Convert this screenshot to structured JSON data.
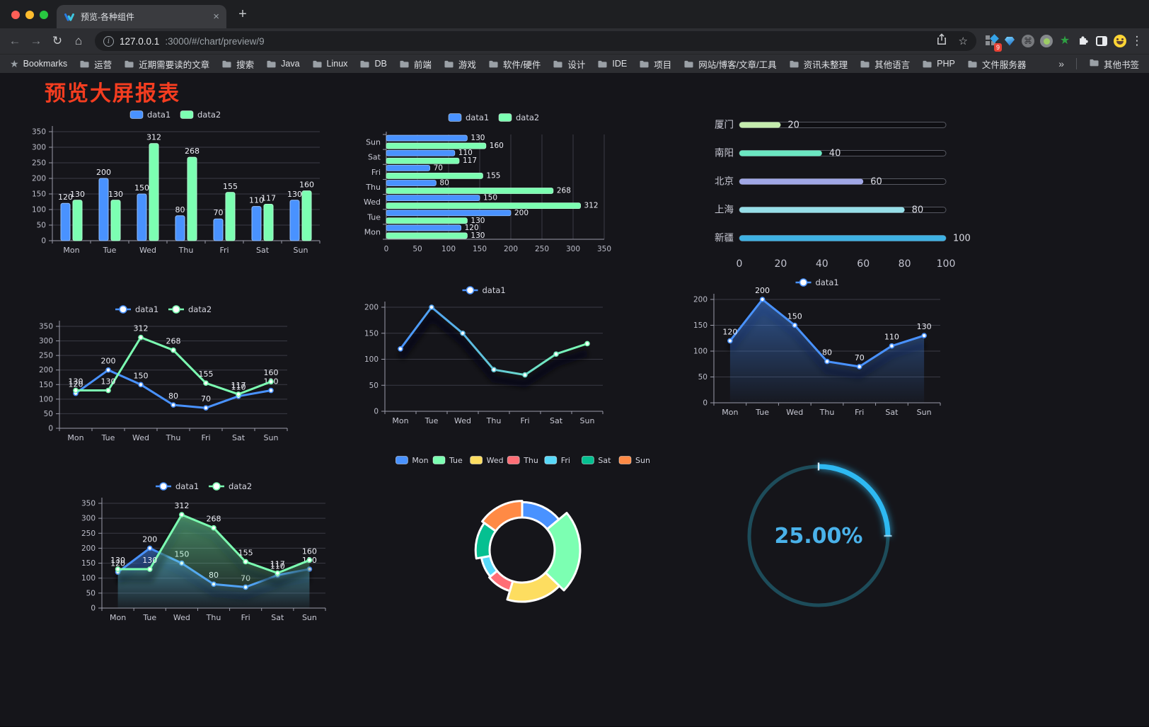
{
  "browser": {
    "tab_title": "预览-各种组件",
    "url_host": "127.0.0.1",
    "url_rest": ":3000/#/chart/preview/9",
    "bookmarks_label": "Bookmarks",
    "bookmarks": [
      "运营",
      "近期需要读的文章",
      "搜索",
      "Java",
      "Linux",
      "DB",
      "前端",
      "游戏",
      "软件/硬件",
      "设计",
      "IDE",
      "项目",
      "网站/博客/文章/工具",
      "资讯未整理",
      "其他语言",
      "PHP",
      "文件服务器"
    ],
    "overflow": "»",
    "other_bookmarks": "其他书签",
    "extension_badge": "9",
    "icons": {
      "back": "←",
      "forward": "→",
      "reload": "↻",
      "home": "⌂",
      "star": "☆",
      "dots": "⋮",
      "close": "×",
      "plus": "+",
      "bookmarks_star": "★",
      "cmd": "⌘",
      "green_star": "★"
    }
  },
  "page": {
    "title": "预览大屏报表",
    "title_color": "#f53d20"
  },
  "chart_data": [
    {
      "type": "bar",
      "legend": [
        "data1",
        "data2"
      ],
      "legend_position": "top",
      "categories": [
        "Mon",
        "Tue",
        "Wed",
        "Thu",
        "Fri",
        "Sat",
        "Sun"
      ],
      "series": [
        {
          "name": "data1",
          "color": "#4992ff",
          "values": [
            120,
            200,
            150,
            80,
            70,
            110,
            130
          ]
        },
        {
          "name": "data2",
          "color": "#7cffb2",
          "values": [
            130,
            130,
            312,
            268,
            155,
            117,
            160
          ]
        }
      ],
      "ylim": [
        0,
        350
      ],
      "yticks": [
        0,
        50,
        100,
        150,
        200,
        250,
        300,
        350
      ],
      "grid": true,
      "value_labels": true
    },
    {
      "type": "hbar",
      "legend": [
        "data1",
        "data2"
      ],
      "legend_position": "top",
      "categories": [
        "Mon",
        "Tue",
        "Wed",
        "Thu",
        "Fri",
        "Sat",
        "Sun"
      ],
      "display_order_top_to_bottom": [
        "Sun",
        "Sat",
        "Fri",
        "Thu",
        "Wed",
        "Tue",
        "Mon"
      ],
      "series": [
        {
          "name": "data1",
          "color": "#4992ff",
          "values": [
            120,
            200,
            150,
            80,
            70,
            110,
            130
          ]
        },
        {
          "name": "data2",
          "color": "#7cffb2",
          "values": [
            130,
            130,
            312,
            268,
            155,
            117,
            160
          ]
        }
      ],
      "xlim": [
        0,
        350
      ],
      "xticks": [
        0,
        50,
        100,
        150,
        200,
        250,
        300,
        350
      ],
      "grid": true,
      "value_labels": true
    },
    {
      "type": "progress",
      "max": 100,
      "xticks": [
        0,
        20,
        40,
        60,
        80,
        100
      ],
      "items": [
        {
          "label": "厦门",
          "value": 20,
          "color": "#c4ebad"
        },
        {
          "label": "南阳",
          "value": 40,
          "color": "#6be6c1"
        },
        {
          "label": "北京",
          "value": 60,
          "color": "#a0a7e6"
        },
        {
          "label": "上海",
          "value": 80,
          "color": "#96dee8"
        },
        {
          "label": "新疆",
          "value": 100,
          "color": "#3fb1e3"
        }
      ]
    },
    {
      "type": "line",
      "legend": [
        "data1",
        "data2"
      ],
      "legend_position": "top",
      "categories": [
        "Mon",
        "Tue",
        "Wed",
        "Thu",
        "Fri",
        "Sat",
        "Sun"
      ],
      "series": [
        {
          "name": "data1",
          "color": "#4992ff",
          "values": [
            120,
            200,
            150,
            80,
            70,
            110,
            130
          ]
        },
        {
          "name": "data2",
          "color": "#7cffb2",
          "values": [
            130,
            130,
            312,
            268,
            155,
            117,
            160
          ]
        }
      ],
      "ylim": [
        0,
        350
      ],
      "yticks": [
        0,
        50,
        100,
        150,
        200,
        250,
        300,
        350
      ],
      "grid": true,
      "value_labels": true
    },
    {
      "type": "line",
      "legend": [
        "data1"
      ],
      "legend_position": "top",
      "shadow": true,
      "categories": [
        "Mon",
        "Tue",
        "Wed",
        "Thu",
        "Fri",
        "Sat",
        "Sun"
      ],
      "series": [
        {
          "name": "data1",
          "color": "#4992ff",
          "color_gradient": [
            "#4992ff",
            "#7cffb2"
          ],
          "values": [
            120,
            200,
            150,
            80,
            70,
            110,
            130
          ]
        }
      ],
      "ylim": [
        0,
        200
      ],
      "yticks": [
        0,
        50,
        100,
        150,
        200
      ],
      "grid": true,
      "value_labels": false
    },
    {
      "type": "line",
      "legend": [
        "data1"
      ],
      "legend_position": "top",
      "shadow": true,
      "categories": [
        "Mon",
        "Tue",
        "Wed",
        "Thu",
        "Fri",
        "Sat",
        "Sun"
      ],
      "series": [
        {
          "name": "data1",
          "color": "#4992ff",
          "area": true,
          "values": [
            120,
            200,
            150,
            80,
            70,
            110,
            130
          ]
        }
      ],
      "ylim": [
        0,
        200
      ],
      "yticks": [
        0,
        50,
        100,
        150,
        200
      ],
      "grid": true,
      "value_labels": true
    },
    {
      "type": "line",
      "legend": [
        "data1",
        "data2"
      ],
      "legend_position": "top",
      "shadow": true,
      "categories": [
        "Mon",
        "Tue",
        "Wed",
        "Thu",
        "Fri",
        "Sat",
        "Sun"
      ],
      "series": [
        {
          "name": "data1",
          "color": "#4992ff",
          "area": true,
          "values": [
            120,
            200,
            150,
            80,
            70,
            110,
            130
          ]
        },
        {
          "name": "data2",
          "color": "#7cffb2",
          "area": true,
          "values": [
            130,
            130,
            312,
            268,
            155,
            117,
            160
          ]
        }
      ],
      "ylim": [
        0,
        350
      ],
      "yticks": [
        0,
        50,
        100,
        150,
        200,
        250,
        300,
        350
      ],
      "grid": true,
      "value_labels": true
    },
    {
      "type": "pie",
      "rose": true,
      "legend_position": "top",
      "categories": [
        "Mon",
        "Tue",
        "Wed",
        "Thu",
        "Fri",
        "Sat",
        "Sun"
      ],
      "values": [
        120,
        200,
        150,
        80,
        70,
        110,
        130
      ],
      "colors": [
        "#4992ff",
        "#7cffb2",
        "#fddd60",
        "#ff6e76",
        "#58d9f9",
        "#05c091",
        "#ff8a45"
      ]
    },
    {
      "type": "gauge",
      "value_percent": 25,
      "label": "25.00%",
      "color": "#2eb9f2",
      "track_color": "#1d4c5a",
      "text_color": "#4ab2ea"
    }
  ]
}
